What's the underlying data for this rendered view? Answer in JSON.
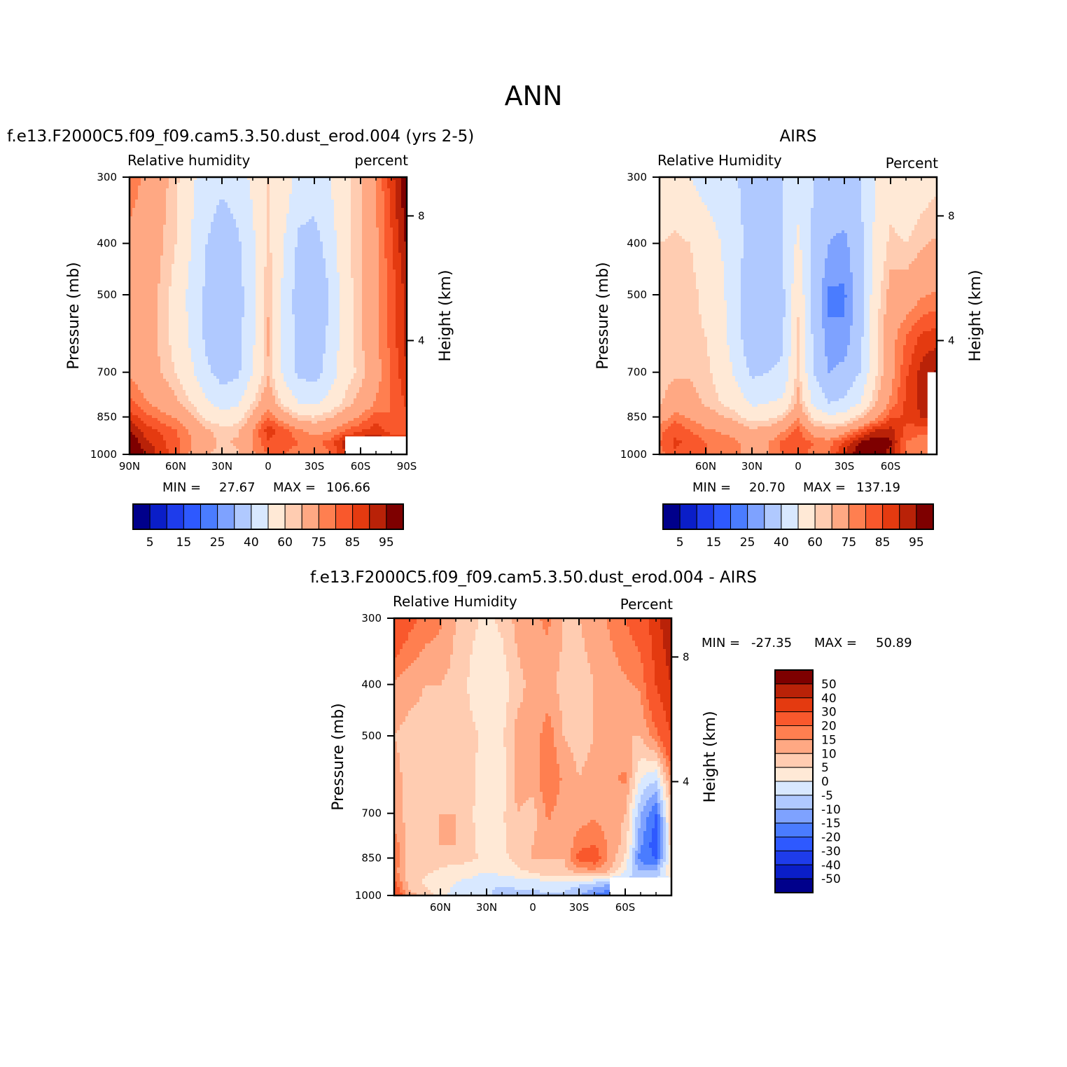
{
  "figure_title": "ANN",
  "colors": {
    "abs_scale": [
      "#00008b",
      "#0a1ec8",
      "#1e3ceb",
      "#2e59ff",
      "#4a7cff",
      "#7ea2ff",
      "#b0c9ff",
      "#d8e8ff",
      "#ffe9d6",
      "#ffccb1",
      "#ffa883",
      "#ff7f50",
      "#f9582c",
      "#e43a10",
      "#b92208",
      "#7e0000"
    ],
    "diff_scale": [
      "#7e0000",
      "#b92208",
      "#e43a10",
      "#f9582c",
      "#ff7f50",
      "#ffa883",
      "#ffccb1",
      "#ffe9d6",
      "#d8e8ff",
      "#b0c9ff",
      "#7ea2ff",
      "#4a7cff",
      "#2e59ff",
      "#1e3ceb",
      "#0a1ec8",
      "#00008b"
    ],
    "missing": "#ffffff"
  },
  "chart_data": [
    {
      "type": "heatmap",
      "title": "f.e13.F2000C5.f09_f09.cam5.3.50.dust_erod.004 (yrs 2-5)",
      "variable": "Relative humidity",
      "units": "percent",
      "ylabel": "Pressure (mb)",
      "ylabel_right": "Height (km)",
      "x_ticks": [
        "90N",
        "60N",
        "30N",
        "0",
        "30S",
        "60S",
        "90S"
      ],
      "x_tick_values": [
        90,
        60,
        30,
        0,
        -30,
        -60,
        -90
      ],
      "xlim": [
        90,
        -90
      ],
      "y_ticks": [
        "300",
        "400",
        "500",
        "700",
        "850",
        "1000"
      ],
      "y_tick_values": [
        300,
        400,
        500,
        700,
        850,
        1000
      ],
      "ylim": [
        1000,
        300
      ],
      "right_ticks": [
        "8",
        "4"
      ],
      "right_tick_pressure": [
        355,
        610
      ],
      "min_label": "MIN =",
      "min_value": "27.67",
      "max_label": "MAX =",
      "max_value": "106.66",
      "colorbar_labels": [
        "5",
        "15",
        "25",
        "40",
        "60",
        "75",
        "85",
        "95"
      ],
      "levels": [
        5,
        10,
        15,
        20,
        25,
        30,
        40,
        50,
        60,
        65,
        75,
        80,
        85,
        90,
        95
      ],
      "field_profiles": {
        "lat": [
          90,
          80,
          70,
          60,
          50,
          40,
          30,
          20,
          10,
          0,
          -10,
          -20,
          -30,
          -40,
          -50,
          -60,
          -70,
          -80,
          -90
        ],
        "p": [
          300,
          400,
          500,
          600,
          700,
          800,
          850,
          900,
          950,
          1000
        ],
        "rh": [
          [
            78,
            73,
            73,
            75,
            74,
            82,
            88,
            95,
            100,
            104
          ],
          [
            74,
            71,
            70,
            70,
            70,
            76,
            82,
            88,
            92,
            95
          ],
          [
            68,
            66,
            64,
            64,
            65,
            72,
            78,
            84,
            87,
            88
          ],
          [
            62,
            60,
            57,
            57,
            60,
            67,
            74,
            80,
            82,
            82
          ],
          [
            52,
            50,
            47,
            48,
            52,
            60,
            66,
            74,
            75,
            74
          ],
          [
            45,
            40,
            38,
            38,
            42,
            52,
            58,
            66,
            68,
            66
          ],
          [
            42,
            34,
            33,
            33,
            36,
            46,
            55,
            62,
            64,
            62
          ],
          [
            45,
            38,
            36,
            36,
            38,
            48,
            55,
            64,
            66,
            64
          ],
          [
            52,
            48,
            46,
            48,
            50,
            60,
            68,
            74,
            76,
            74
          ],
          [
            60,
            62,
            64,
            66,
            64,
            72,
            80,
            88,
            84,
            80
          ],
          [
            56,
            50,
            48,
            48,
            48,
            58,
            70,
            82,
            84,
            80
          ],
          [
            46,
            38,
            35,
            36,
            38,
            50,
            62,
            76,
            80,
            76
          ],
          [
            45,
            36,
            32,
            34,
            36,
            48,
            60,
            72,
            78,
            76
          ],
          [
            50,
            44,
            40,
            42,
            44,
            54,
            64,
            74,
            82,
            80
          ],
          [
            58,
            58,
            56,
            56,
            56,
            62,
            70,
            80,
            92,
            90
          ],
          [
            64,
            64,
            64,
            64,
            62,
            68,
            76,
            84,
            95,
            92
          ],
          [
            74,
            74,
            74,
            74,
            72,
            76,
            82,
            88,
            96,
            96
          ],
          [
            88,
            84,
            82,
            82,
            80,
            80,
            80,
            82,
            90,
            90
          ],
          [
            100,
            96,
            92,
            92,
            90,
            86,
            84,
            84,
            88,
            88
          ]
        ],
        "missing_region": {
          "lat_from": -50,
          "lat_to": -90,
          "p_from": 925,
          "p_to": 1000
        }
      }
    },
    {
      "type": "heatmap",
      "title": "AIRS",
      "variable": "Relative Humidity",
      "units": "Percent",
      "ylabel": "Pressure (mb)",
      "ylabel_right": "Height (km)",
      "x_ticks": [
        "60N",
        "30N",
        "0",
        "30S",
        "60S"
      ],
      "x_tick_values": [
        60,
        30,
        0,
        -30,
        -60
      ],
      "xlim": [
        90,
        -90
      ],
      "y_ticks": [
        "300",
        "400",
        "500",
        "700",
        "850",
        "1000"
      ],
      "y_tick_values": [
        300,
        400,
        500,
        700,
        850,
        1000
      ],
      "ylim": [
        1000,
        300
      ],
      "right_ticks": [
        "8",
        "4"
      ],
      "right_tick_pressure": [
        355,
        610
      ],
      "min_label": "MIN =",
      "min_value": "20.70",
      "max_label": "MAX =",
      "max_value": "137.19",
      "colorbar_labels": [
        "5",
        "15",
        "25",
        "40",
        "60",
        "75",
        "85",
        "95"
      ],
      "levels": [
        5,
        10,
        15,
        20,
        25,
        30,
        40,
        50,
        60,
        65,
        75,
        80,
        85,
        90,
        95
      ],
      "field_profiles": {
        "lat": [
          90,
          80,
          70,
          60,
          50,
          40,
          30,
          20,
          10,
          0,
          -10,
          -20,
          -30,
          -40,
          -50,
          -60,
          -70,
          -80,
          -90
        ],
        "p": [
          300,
          400,
          500,
          600,
          700,
          800,
          850,
          900,
          950,
          1000
        ],
        "rh": [
          [
            50,
            60,
            62,
            62,
            62,
            64,
            70,
            78,
            80,
            78
          ],
          [
            52,
            62,
            64,
            64,
            64,
            70,
            78,
            84,
            86,
            84
          ],
          [
            50,
            60,
            62,
            62,
            64,
            68,
            74,
            80,
            84,
            82
          ],
          [
            46,
            56,
            58,
            60,
            62,
            64,
            70,
            76,
            80,
            80
          ],
          [
            44,
            50,
            52,
            54,
            56,
            60,
            66,
            74,
            78,
            78
          ],
          [
            40,
            44,
            44,
            44,
            48,
            56,
            62,
            72,
            76,
            76
          ],
          [
            38,
            34,
            30,
            32,
            38,
            48,
            56,
            66,
            72,
            72
          ],
          [
            38,
            36,
            32,
            34,
            40,
            50,
            58,
            68,
            74,
            74
          ],
          [
            40,
            40,
            38,
            38,
            42,
            52,
            62,
            74,
            82,
            80
          ],
          [
            46,
            52,
            58,
            62,
            62,
            68,
            74,
            82,
            84,
            82
          ],
          [
            40,
            38,
            36,
            38,
            40,
            48,
            58,
            70,
            80,
            78
          ],
          [
            36,
            30,
            24,
            26,
            30,
            40,
            52,
            66,
            78,
            80
          ],
          [
            36,
            28,
            24,
            26,
            32,
            42,
            54,
            70,
            86,
            90
          ],
          [
            40,
            36,
            34,
            36,
            40,
            50,
            62,
            80,
            96,
            100
          ],
          [
            50,
            52,
            56,
            58,
            58,
            64,
            72,
            90,
            100,
            100
          ],
          [
            56,
            62,
            68,
            72,
            72,
            76,
            84,
            92,
            96,
            92
          ],
          [
            52,
            60,
            70,
            80,
            84,
            86,
            86,
            84,
            80,
            80
          ],
          [
            56,
            64,
            74,
            86,
            92,
            92,
            90,
            82,
            76,
            76
          ],
          [
            58,
            66,
            76,
            88,
            96,
            96,
            94,
            84,
            78,
            78
          ]
        ],
        "missing_region": {
          "lat_from": -84,
          "lat_to": -90,
          "p_from": 700,
          "p_to": 1000
        }
      }
    },
    {
      "type": "heatmap",
      "title": "f.e13.F2000C5.f09_f09.cam5.3.50.dust_erod.004 - AIRS",
      "variable": "Relative Humidity",
      "units": "Percent",
      "ylabel": "Pressure (mb)",
      "ylabel_right": "Height (km)",
      "x_ticks": [
        "60N",
        "30N",
        "0",
        "30S",
        "60S"
      ],
      "x_tick_values": [
        60,
        30,
        0,
        -30,
        -60
      ],
      "xlim": [
        90,
        -90
      ],
      "y_ticks": [
        "300",
        "400",
        "500",
        "700",
        "850",
        "1000"
      ],
      "y_tick_values": [
        300,
        400,
        500,
        700,
        850,
        1000
      ],
      "ylim": [
        1000,
        300
      ],
      "right_ticks": [
        "8",
        "4"
      ],
      "right_tick_pressure": [
        355,
        610
      ],
      "min_label": "MIN =",
      "min_value": "-27.35",
      "max_label": "MAX =",
      "max_value": "50.89",
      "colorbar_labels": [
        "50",
        "40",
        "30",
        "20",
        "15",
        "10",
        "5",
        "0",
        "-5",
        "-10",
        "-15",
        "-20",
        "-30",
        "-40",
        "-50"
      ],
      "levels": [
        50,
        40,
        30,
        20,
        15,
        10,
        5,
        0,
        -5,
        -10,
        -15,
        -20,
        -30,
        -40,
        -50
      ],
      "field_profiles": {
        "lat": [
          90,
          80,
          70,
          60,
          50,
          40,
          30,
          20,
          10,
          0,
          -10,
          -20,
          -30,
          -40,
          -50,
          -60,
          -70,
          -80,
          -90
        ],
        "p": [
          300,
          400,
          500,
          600,
          700,
          800,
          850,
          900,
          950,
          1000
        ],
        "diff": [
          [
            28,
            14,
            10,
            12,
            12,
            18,
            20,
            18,
            22,
            28
          ],
          [
            22,
            12,
            8,
            8,
            8,
            8,
            6,
            6,
            8,
            12
          ],
          [
            18,
            10,
            8,
            8,
            8,
            10,
            8,
            6,
            4,
            8
          ],
          [
            16,
            10,
            8,
            8,
            10,
            10,
            8,
            4,
            2,
            2
          ],
          [
            10,
            8,
            8,
            8,
            10,
            10,
            8,
            2,
            0,
            -2
          ],
          [
            6,
            4,
            6,
            6,
            6,
            6,
            6,
            2,
            -2,
            -4
          ],
          [
            4,
            2,
            4,
            2,
            0,
            2,
            4,
            0,
            -4,
            -4
          ],
          [
            6,
            2,
            4,
            2,
            4,
            4,
            4,
            2,
            -4,
            -8
          ],
          [
            12,
            8,
            12,
            12,
            10,
            8,
            6,
            4,
            -4,
            -6
          ],
          [
            14,
            12,
            12,
            12,
            8,
            10,
            10,
            6,
            -4,
            -6
          ],
          [
            16,
            12,
            18,
            20,
            16,
            12,
            10,
            10,
            -2,
            -6
          ],
          [
            10,
            8,
            10,
            14,
            12,
            10,
            10,
            8,
            -2,
            -6
          ],
          [
            10,
            8,
            8,
            10,
            12,
            18,
            22,
            12,
            -4,
            -10
          ],
          [
            12,
            10,
            10,
            12,
            14,
            20,
            24,
            14,
            -6,
            -16
          ],
          [
            16,
            12,
            10,
            14,
            12,
            14,
            14,
            10,
            -10,
            -20
          ],
          [
            20,
            14,
            10,
            16,
            10,
            8,
            4,
            0,
            -6,
            -10
          ],
          [
            24,
            16,
            10,
            0,
            -10,
            -14,
            -18,
            -10,
            -8,
            -8
          ],
          [
            36,
            30,
            18,
            -4,
            -20,
            -24,
            -20,
            -8,
            -4,
            -4
          ],
          [
            50,
            40,
            30,
            16,
            8,
            8,
            6,
            4,
            0,
            0
          ]
        ],
        "missing_region": {
          "lat_from": -50,
          "lat_to": -90,
          "p_from": 925,
          "p_to": 1000
        }
      }
    }
  ]
}
